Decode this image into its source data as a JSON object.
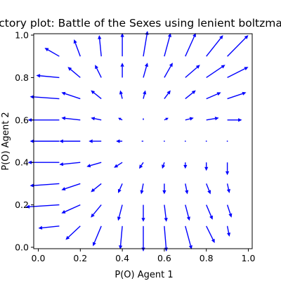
{
  "chart_data": {
    "type": "quiver",
    "title": "Trajectory plot: Battle of the Sexes using lenient boltzmann Q",
    "xlabel": "P(O) Agent 1",
    "ylabel": "P(O) Agent 2",
    "xlim": [
      0.0,
      1.0
    ],
    "ylim": [
      0.0,
      1.0
    ],
    "xticks": [
      "0.0",
      "0.2",
      "0.4",
      "0.6",
      "0.8",
      "1.0"
    ],
    "yticks": [
      "0.0",
      "0.2",
      "0.4",
      "0.6",
      "0.8",
      "1.0"
    ],
    "grid": false,
    "arrow_color": "#0000ff",
    "grid_points": [
      0.1,
      0.2,
      0.3,
      0.4,
      0.5,
      0.6,
      0.7,
      0.8,
      0.9
    ],
    "vectors": [
      [
        [
          -0.1,
          -0.01
        ],
        [
          -0.07,
          -0.065
        ],
        [
          -0.04,
          -0.095
        ],
        [
          -0.01,
          -0.11
        ],
        [
          0.0,
          -0.12
        ],
        [
          0.01,
          -0.12
        ],
        [
          0.03,
          -0.11
        ],
        [
          0.04,
          -0.08
        ],
        [
          0.01,
          -0.05
        ]
      ],
      [
        [
          -0.16,
          -0.01
        ],
        [
          -0.09,
          -0.04
        ],
        [
          -0.05,
          -0.06
        ],
        [
          -0.02,
          -0.075
        ],
        [
          0.0,
          -0.08
        ],
        [
          0.01,
          -0.08
        ],
        [
          0.02,
          -0.075
        ],
        [
          0.03,
          -0.07
        ],
        [
          0.02,
          -0.06
        ]
      ],
      [
        [
          -0.14,
          -0.01
        ],
        [
          -0.09,
          -0.03
        ],
        [
          -0.05,
          -0.04
        ],
        [
          -0.02,
          -0.045
        ],
        [
          -0.01,
          -0.05
        ],
        [
          0.0,
          -0.05
        ],
        [
          0.01,
          -0.05
        ],
        [
          0.02,
          -0.05
        ],
        [
          0.01,
          -0.045
        ]
      ],
      [
        [
          -0.15,
          0.0
        ],
        [
          -0.1,
          -0.01
        ],
        [
          -0.07,
          -0.02
        ],
        [
          -0.04,
          -0.025
        ],
        [
          -0.02,
          -0.03
        ],
        [
          -0.01,
          -0.03
        ],
        [
          0.0,
          -0.03
        ],
        [
          0.0,
          -0.04
        ],
        [
          0.0,
          -0.06
        ]
      ],
      [
        [
          -0.14,
          0.0
        ],
        [
          -0.1,
          0.0
        ],
        [
          -0.06,
          0.0
        ],
        [
          -0.03,
          0.0
        ],
        [
          -0.01,
          0.0
        ],
        [
          0.0,
          0.0
        ],
        [
          0.0,
          0.0
        ],
        [
          0.0,
          0.0
        ],
        [
          0.0,
          0.0
        ]
      ],
      [
        [
          -0.15,
          0.0
        ],
        [
          -0.09,
          0.01
        ],
        [
          -0.05,
          0.01
        ],
        [
          -0.02,
          0.01
        ],
        [
          0.0,
          0.01
        ],
        [
          0.02,
          0.01
        ],
        [
          0.04,
          0.01
        ],
        [
          0.06,
          0.01
        ],
        [
          0.07,
          0.0
        ]
      ],
      [
        [
          -0.14,
          0.01
        ],
        [
          -0.09,
          0.03
        ],
        [
          -0.05,
          0.04
        ],
        [
          -0.01,
          0.04
        ],
        [
          0.01,
          0.04
        ],
        [
          0.03,
          0.04
        ],
        [
          0.05,
          0.04
        ],
        [
          0.07,
          0.03
        ],
        [
          0.09,
          0.03
        ]
      ],
      [
        [
          -0.11,
          0.01
        ],
        [
          -0.06,
          0.05
        ],
        [
          -0.03,
          0.06
        ],
        [
          0.0,
          0.07
        ],
        [
          0.02,
          0.07
        ],
        [
          0.04,
          0.07
        ],
        [
          0.07,
          0.06
        ],
        [
          0.09,
          0.06
        ],
        [
          0.1,
          0.05
        ]
      ],
      [
        [
          -0.07,
          0.04
        ],
        [
          -0.03,
          0.08
        ],
        [
          -0.01,
          0.1
        ],
        [
          0.0,
          0.11
        ],
        [
          0.02,
          0.12
        ],
        [
          0.03,
          0.11
        ],
        [
          0.05,
          0.11
        ],
        [
          0.08,
          0.1
        ],
        [
          0.1,
          0.1
        ]
      ]
    ]
  }
}
